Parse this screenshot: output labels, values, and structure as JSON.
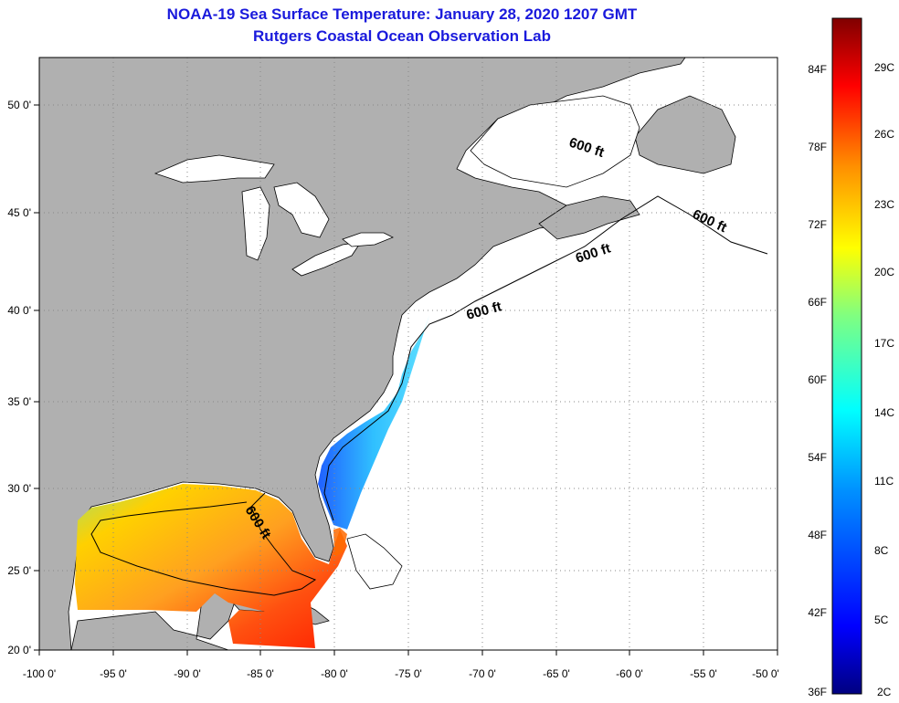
{
  "title": "NOAA-19 Sea Surface Temperature:  January 28, 2020 1207 GMT",
  "subtitle": "Rutgers Coastal Ocean Observation Lab",
  "colors": {
    "land": "#b0b0b0",
    "ocean_nodata": "#ffffff",
    "title": "#1a1adc",
    "grid": "#888888",
    "colorbar": [
      "#000080",
      "#0000ff",
      "#0080ff",
      "#00ffff",
      "#80ff80",
      "#ffff00",
      "#ff8000",
      "#ff0000",
      "#800000"
    ]
  },
  "axes": {
    "x_ticks": [
      "-100 0'",
      "-95 0'",
      "-90 0'",
      "-85 0'",
      "-80 0'",
      "-75 0'",
      "-70 0'",
      "-65 0'",
      "-60 0'",
      "-55 0'",
      "-50 0'"
    ],
    "y_ticks": [
      "50 0'",
      "45 0'",
      "40 0'",
      "35 0'",
      "30 0'",
      "25 0'",
      "20 0'"
    ]
  },
  "colorbar": {
    "fahrenheit": [
      "84F",
      "78F",
      "72F",
      "66F",
      "60F",
      "54F",
      "48F",
      "42F",
      "36F"
    ],
    "celsius": [
      "29C",
      "26C",
      "23C",
      "20C",
      "17C",
      "14C",
      "11C",
      "8C",
      "5C",
      "2C"
    ]
  },
  "contour_labels": [
    "600 ft",
    "600 ft",
    "600 ft",
    "600 ft",
    "600 ft"
  ]
}
